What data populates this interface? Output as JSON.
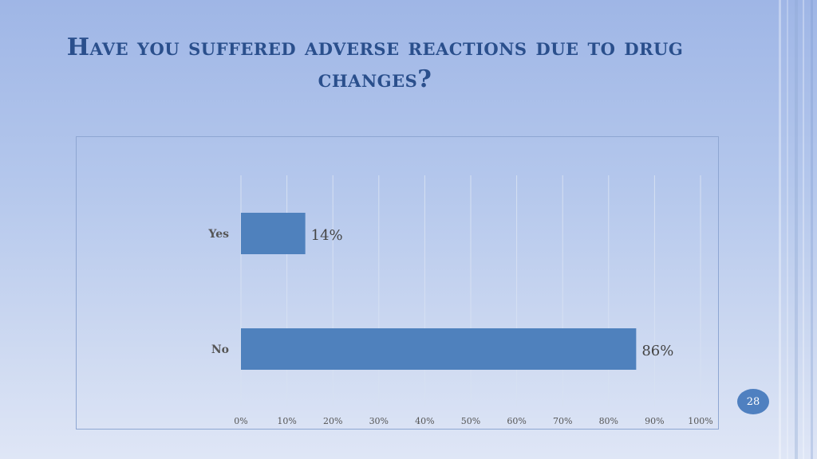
{
  "slide": {
    "title": "Have you suffered adverse reactions due to drug changes?",
    "page_number": "28"
  },
  "colors": {
    "bar": "#4f81bd",
    "title": "#2a4f8c",
    "badge": "#4f80c0"
  },
  "chart_data": {
    "type": "bar",
    "orientation": "horizontal",
    "categories": [
      "Yes",
      "No"
    ],
    "values": [
      14,
      86
    ],
    "value_labels": [
      "14%",
      "86%"
    ],
    "xlim": [
      0,
      100
    ],
    "xticks": [
      "0%",
      "10%",
      "20%",
      "30%",
      "40%",
      "50%",
      "60%",
      "70%",
      "80%",
      "90%",
      "100%"
    ],
    "grid": true,
    "legend": "none"
  }
}
